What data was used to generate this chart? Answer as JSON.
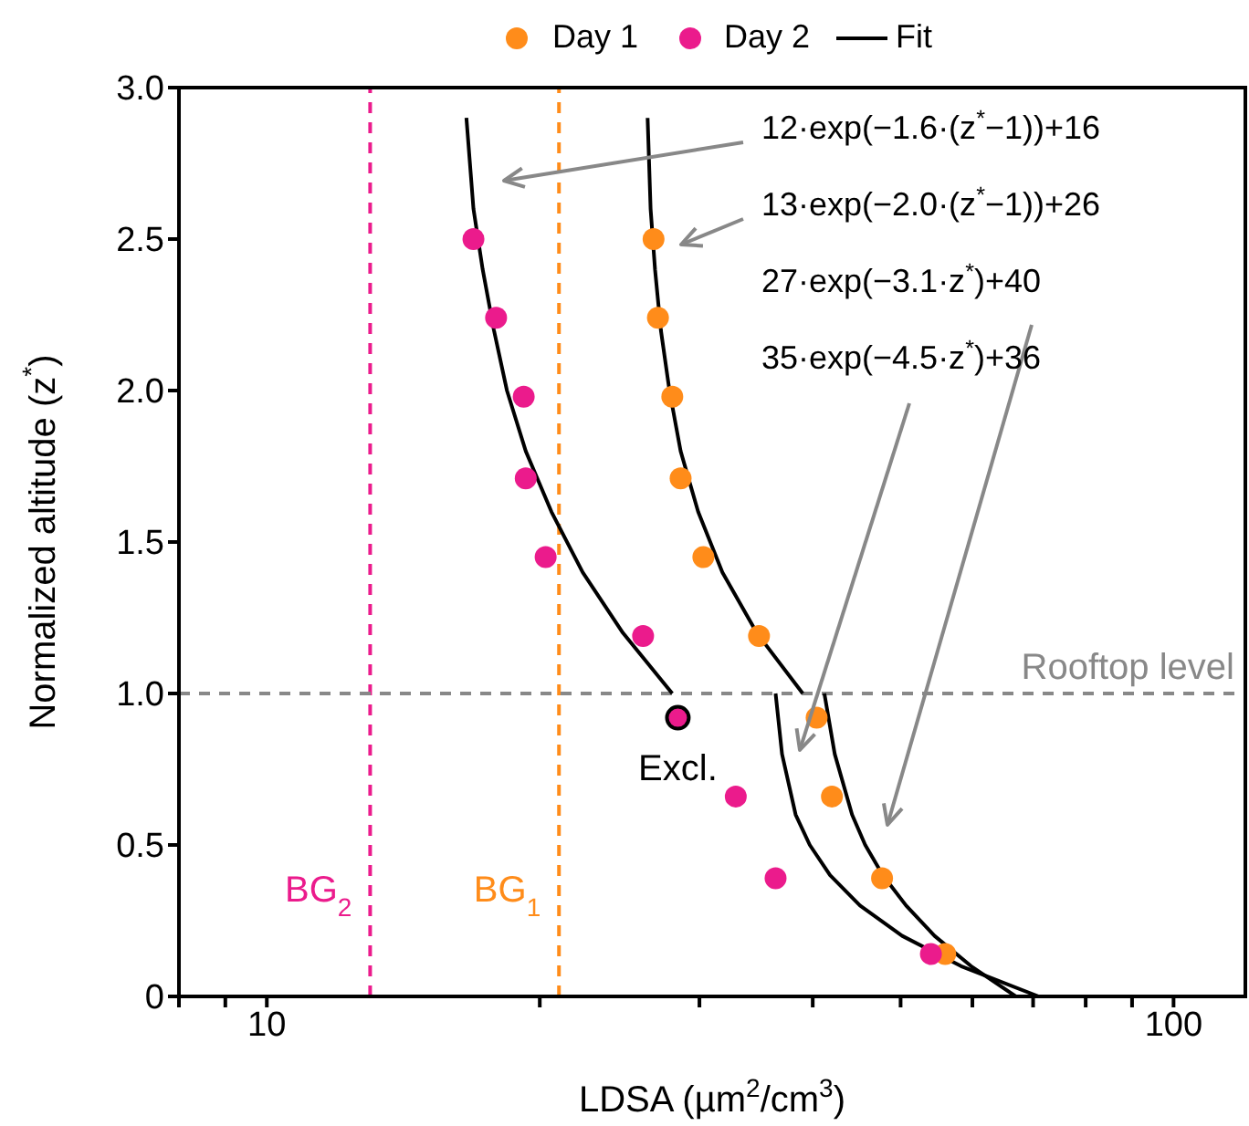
{
  "chart_data": {
    "type": "scatter",
    "xlabel": "LDSA (µm$^{2}$/cm$^{3}$)",
    "ylabel": "Normalized altitude (z$^{*}$)",
    "log": "x",
    "xlim": [
      8,
      120
    ],
    "xticks": [
      {
        "value": 8,
        "label": null
      },
      {
        "value": 9,
        "label": null
      },
      10,
      {
        "value": 20,
        "label": null
      },
      {
        "value": 30,
        "label": null
      },
      {
        "value": 40,
        "label": null
      },
      {
        "value": 50,
        "label": null
      },
      {
        "value": 60,
        "label": null
      },
      {
        "value": 70,
        "label": null
      },
      {
        "value": 80,
        "label": null
      },
      {
        "value": 90,
        "label": null
      },
      100
    ],
    "ylim": [
      0,
      3
    ],
    "yticks": [
      0,
      0.5,
      {
        "value": 1,
        "label": "1.0"
      },
      1.5,
      {
        "value": 2,
        "label": "2.0"
      },
      2.5,
      {
        "value": 3,
        "label": "3.0"
      }
    ],
    "grid": false,
    "legend": "top",
    "series": [
      {
        "name": "Day 1",
        "marker": "circle",
        "color": "#ff8c1a",
        "x": [
          26.7,
          27.0,
          28.0,
          28.6,
          30.3,
          34.9,
          40.4,
          42.0,
          47.7,
          56.0
        ],
        "values": [
          2.5,
          2.24,
          1.98,
          1.71,
          1.45,
          1.19,
          0.92,
          0.66,
          0.39,
          0.14
        ]
      },
      {
        "name": "Day 2",
        "marker": "circle",
        "color": "#eb1b8c",
        "x": [
          16.9,
          17.9,
          19.2,
          19.3,
          20.3,
          26.0,
          32.9,
          36.4,
          54.0
        ],
        "values": [
          2.5,
          2.24,
          1.98,
          1.71,
          1.45,
          1.19,
          0.66,
          0.39,
          0.14
        ]
      },
      {
        "marker": "circle",
        "color": "#eb1b8c",
        "x": [
          28.4
        ],
        "values": [
          0.92
        ]
      },
      {
        "name": "Fit",
        "type": "line",
        "marker": "none",
        "color": "#000000",
        "x": [
          28.0,
          24.7,
          22.3,
          20.6,
          19.3,
          18.4,
          17.8,
          17.3,
          16.9,
          16.6
        ],
        "values": [
          1.0,
          1.2,
          1.4,
          1.6,
          1.8,
          2.0,
          2.2,
          2.4,
          2.6,
          2.9
        ]
      },
      {
        "type": "line",
        "marker": "none",
        "color": "#000000",
        "x": [
          39.0,
          34.7,
          31.8,
          29.9,
          28.6,
          27.8,
          27.2,
          26.8,
          26.5,
          26.3
        ],
        "values": [
          1.0,
          1.2,
          1.4,
          1.6,
          1.8,
          2.0,
          2.2,
          2.4,
          2.6,
          2.9
        ]
      },
      {
        "type": "line",
        "marker": "none",
        "color": "#000000",
        "x": [
          67.0,
          59.8,
          54.5,
          50.7,
          47.8,
          45.7,
          44.2,
          42.3,
          41.2
        ],
        "values": [
          0,
          0.1,
          0.2,
          0.3,
          0.4,
          0.5,
          0.6,
          0.8,
          1.0
        ]
      },
      {
        "type": "line",
        "marker": "none",
        "color": "#000000",
        "x": [
          71.0,
          58.3,
          50.2,
          45.1,
          41.8,
          39.7,
          38.3,
          37.0,
          36.4
        ],
        "values": [
          0,
          0.1,
          0.2,
          0.3,
          0.4,
          0.5,
          0.6,
          0.8,
          1.0
        ]
      }
    ],
    "ref_lines": [
      {
        "axis": "x",
        "value": 13,
        "label": "BG$_{2}$",
        "color": "#eb1b8c",
        "line_style": "dashed"
      },
      {
        "axis": "x",
        "value": 21,
        "label": "BG$_{1}$",
        "color": "#ff8c1a",
        "line_style": "dashed"
      },
      {
        "axis": "y",
        "value": 1,
        "label": "Rooftop level",
        "color": "#888888",
        "line_style": "dashed"
      }
    ],
    "annotations": [
      "12·exp(−1.6·(z$^{*}$−1))+16",
      "13·exp(−2.0·(z$^{*}$−1))+26",
      "27·exp(−3.1·z$^{*}$)+40",
      "35·exp(−4.5·z$^{*}$)+36",
      {
        "text": "Excl.",
        "x": 28.4,
        "y": 0.92
      }
    ]
  }
}
